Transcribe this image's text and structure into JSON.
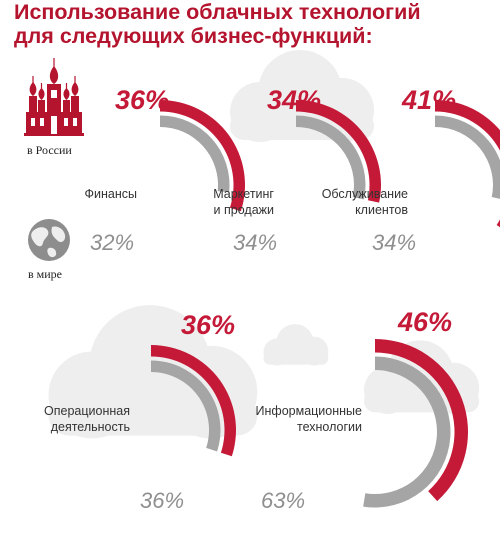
{
  "title": {
    "line1": "Использование облачных технологий",
    "line2": "для следующих бизнес-функций:"
  },
  "legend": {
    "russia_label": "в России",
    "world_label": "в мире"
  },
  "colors": {
    "russia": "#c41a38",
    "world": "#a5a5a5",
    "cloud": "#eeeeee",
    "title": "#b5142e"
  },
  "icons": {
    "russia": "kremlin-cathedral-icon",
    "world": "globe-icon",
    "decoration": "cloud-icon"
  },
  "chart_data": {
    "type": "radial-bar",
    "categories": [
      "Финансы",
      "Маркетинг и продажи",
      "Обслуживание клиентов",
      "Операционная деятельность",
      "Информационные технологии"
    ],
    "category_lines": [
      [
        "Финансы"
      ],
      [
        "Маркетинг",
        "и продажи"
      ],
      [
        "Обслуживание",
        "клиентов"
      ],
      [
        "Операционная",
        "деятельность"
      ],
      [
        "Информационные",
        "технологии"
      ]
    ],
    "series": [
      {
        "name": "в России",
        "values": [
          36,
          34,
          41,
          36,
          46
        ],
        "labels": [
          "36%",
          "34%",
          "41%",
          "36%",
          "46%"
        ]
      },
      {
        "name": "в мире",
        "values": [
          32,
          34,
          34,
          36,
          63
        ],
        "labels": [
          "32%",
          "34%",
          "34%",
          "36%",
          "63%"
        ]
      }
    ],
    "unit": "%",
    "range": [
      0,
      100
    ]
  }
}
